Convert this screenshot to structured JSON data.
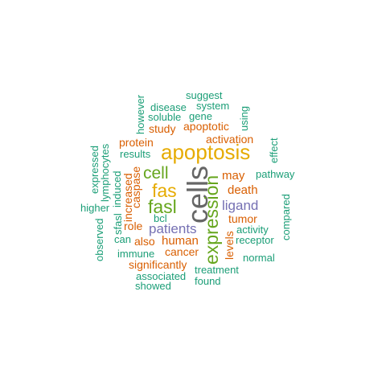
{
  "palette": {
    "teal": "#1b9e77",
    "orange": "#d95f02",
    "purple": "#7570b3",
    "green": "#66a61e",
    "gold": "#e6ab02",
    "gray": "#666666"
  },
  "words": {
    "cells": "cells",
    "apoptosis": "apoptosis",
    "expression": "expression",
    "fas": "fas",
    "fasl": "fasl",
    "cell": "cell",
    "patients": "patients",
    "ligand": "ligand",
    "death": "death",
    "human": "human",
    "may": "may",
    "tumor": "tumor",
    "cancer": "cancer",
    "apoptotic": "apoptotic",
    "activation": "activation",
    "study": "study",
    "protein": "protein",
    "results": "results",
    "increased": "increased",
    "caspase": "caspase",
    "role": "role",
    "also": "also",
    "levels": "levels",
    "receptor": "receptor",
    "activity": "activity",
    "pathway": "pathway",
    "immune": "immune",
    "significantly": "significantly",
    "associated": "associated",
    "treatment": "treatment",
    "found": "found",
    "showed": "showed",
    "normal": "normal",
    "compared": "compared",
    "effect": "effect",
    "suggest": "suggest",
    "system": "system",
    "disease": "disease",
    "gene": "gene",
    "soluble": "soluble",
    "however": "however",
    "using": "using",
    "expressed": "expressed",
    "lymphocytes": "lymphocytes",
    "induced": "induced",
    "sfasl": "sfasl",
    "higher": "higher",
    "observed": "observed",
    "can": "can",
    "bcl": "bcl"
  }
}
